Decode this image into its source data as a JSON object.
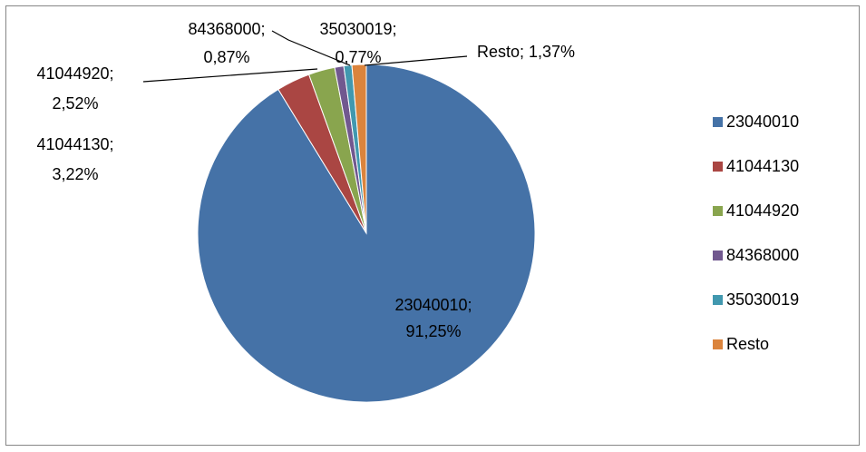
{
  "chart_data": {
    "type": "pie",
    "categories": [
      "23040010",
      "41044130",
      "41044920",
      "84368000",
      "35030019",
      "Resto"
    ],
    "values": [
      91.25,
      3.22,
      2.52,
      0.87,
      0.77,
      1.37
    ],
    "value_labels": [
      "23040010; 91,25%",
      "41044130; 3,22%",
      "41044920; 2,52%",
      "84368000; 0,87%",
      "35030019; 0,77%",
      "Resto; 1,37%"
    ],
    "colors": [
      "#4572a7",
      "#aa4643",
      "#89a54e",
      "#71588f",
      "#4198af",
      "#db843d"
    ],
    "legend": "right"
  }
}
